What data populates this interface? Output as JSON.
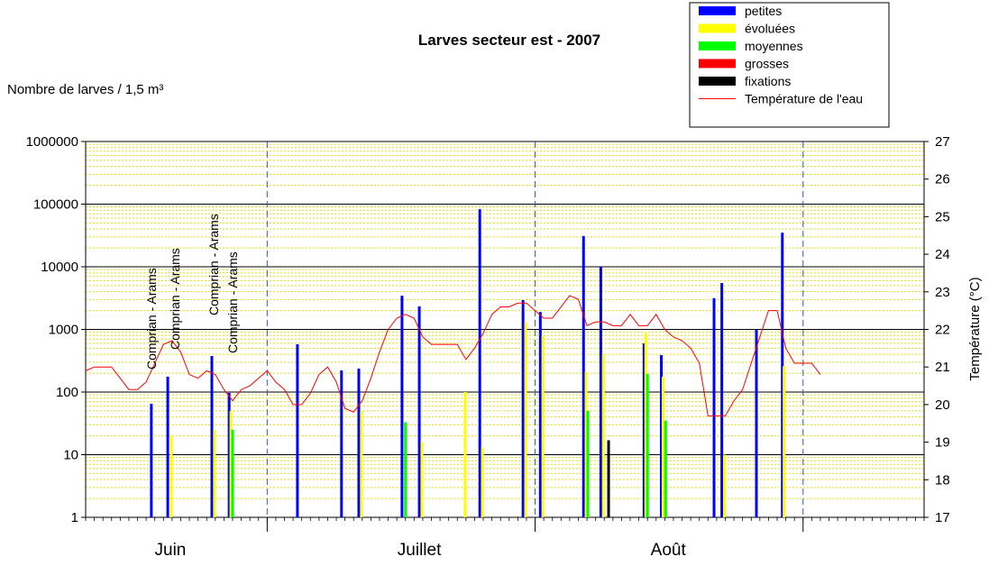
{
  "chart_data": {
    "type": "bar",
    "title": "Larves secteur est - 2007",
    "y_label": "Nombre de larves / 1,5 m³",
    "y2_label": "Température (°C)",
    "log_y": true,
    "grid": true,
    "legend_position": "top-right",
    "xlim": [
      9,
      106
    ],
    "xticks": [
      {
        "value": 18.8,
        "label": "Juin"
      },
      {
        "value": 47.6,
        "label": "Juillet"
      },
      {
        "value": 76.4,
        "label": "Août"
      }
    ],
    "x_dividers": [
      30,
      61,
      92
    ],
    "ylim": [
      1,
      1000000
    ],
    "yticks": [
      1,
      10,
      100,
      1000,
      10000,
      100000,
      1000000
    ],
    "y2lim": [
      17,
      27
    ],
    "y2ticks": [
      17,
      18,
      19,
      20,
      21,
      22,
      23,
      24,
      25,
      26,
      27
    ],
    "annotations": [
      {
        "text": "Comprian - Arams",
        "x": 16.6
      },
      {
        "text": "Comprian - Arams",
        "x": 19.3
      },
      {
        "text": "Comprian - Arams",
        "x": 23.8
      },
      {
        "text": "Comprian - Arams",
        "x": 26.0
      }
    ],
    "series": [
      {
        "name": "petites",
        "type": "bar",
        "color": "#0000ff",
        "x": [
          16.6,
          18.5,
          23.6,
          25.6,
          33.5,
          38.6,
          40.6,
          45.6,
          47.6,
          54.6,
          59.6,
          61.6,
          66.6,
          68.6,
          73.6,
          75.6,
          81.7,
          82.6,
          86.6,
          89.6
        ],
        "values": [
          65,
          176,
          376,
          97,
          580,
          222,
          237,
          3450,
          2330,
          83000,
          2940,
          1900,
          31000,
          10000,
          600,
          390,
          3150,
          5500,
          990,
          35000
        ]
      },
      {
        "name": "évoluées",
        "type": "bar",
        "color": "#ffff00",
        "x": [
          18.9,
          23.9,
          25.8,
          40.9,
          47.9,
          52.9,
          54.9,
          59.9,
          61.9,
          66.9,
          68.9,
          73.8,
          75.8,
          82.9,
          89.8
        ],
        "values": [
          20,
          25,
          50,
          50,
          16,
          100,
          13,
          1280,
          800,
          208,
          400,
          870,
          175,
          10,
          260
        ]
      },
      {
        "name": "moyennes",
        "type": "bar",
        "color": "#00ff00",
        "x": [
          26.0,
          46.0,
          67.1,
          74.0,
          76.1
        ],
        "values": [
          25,
          33,
          50,
          195,
          35
        ]
      },
      {
        "name": "grosses",
        "type": "bar",
        "color": "#ff0000",
        "x": [],
        "values": []
      },
      {
        "name": "fixations",
        "type": "bar",
        "color": "#000000",
        "x": [
          69.5
        ],
        "values": [
          17
        ]
      },
      {
        "name": "Température de l'eau",
        "type": "line",
        "axis": "y2",
        "color": "#ff0000",
        "x": [
          9,
          10,
          11,
          12,
          13,
          14,
          15,
          16,
          17,
          18,
          19,
          20,
          21,
          22,
          23,
          24,
          25,
          26,
          27,
          28,
          29,
          30,
          31,
          32,
          33,
          34,
          35,
          36,
          37,
          38,
          39,
          40,
          41,
          42,
          43,
          44,
          45,
          46,
          47,
          48,
          49,
          50,
          51,
          52,
          53,
          54,
          55,
          56,
          57,
          58,
          59,
          60,
          61,
          62,
          63,
          64,
          65,
          66,
          67,
          68,
          69,
          70,
          71,
          72,
          73,
          74,
          75,
          76,
          77,
          78,
          79,
          80,
          81,
          82,
          83,
          84,
          85,
          86,
          87,
          88,
          89,
          90,
          91,
          92,
          93,
          94
        ],
        "values": [
          20.9,
          21.0,
          21.0,
          21.0,
          20.7,
          20.4,
          20.4,
          20.6,
          21.1,
          21.6,
          21.7,
          21.4,
          20.8,
          20.7,
          20.9,
          20.8,
          20.4,
          20.1,
          20.4,
          20.5,
          20.7,
          20.9,
          20.6,
          20.4,
          20.0,
          20.0,
          20.3,
          20.8,
          21.0,
          20.6,
          19.9,
          19.8,
          20.1,
          20.7,
          21.4,
          22.0,
          22.3,
          22.4,
          22.3,
          21.8,
          21.6,
          21.6,
          21.6,
          21.6,
          21.2,
          21.5,
          21.9,
          22.4,
          22.6,
          22.6,
          22.7,
          22.7,
          22.5,
          22.3,
          22.3,
          22.6,
          22.9,
          22.8,
          22.1,
          22.2,
          22.2,
          22.1,
          22.1,
          22.4,
          22.1,
          22.1,
          22.4,
          22.0,
          21.8,
          21.7,
          21.5,
          21.1,
          19.7,
          19.7,
          19.7,
          20.1,
          20.4,
          21.1,
          21.8,
          22.5,
          22.5,
          21.5,
          21.1,
          21.1,
          21.1,
          20.8
        ]
      }
    ]
  }
}
